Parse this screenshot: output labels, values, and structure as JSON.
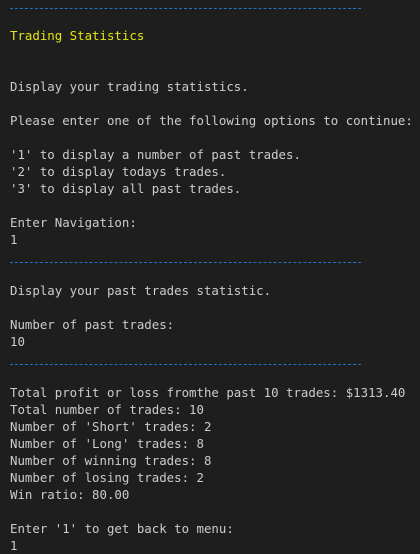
{
  "colors": {
    "background": "#1e1e1e",
    "text": "#cccccc",
    "title": "#e5e510",
    "separator": "#2472c8"
  },
  "header": {
    "title": "Trading Statistics"
  },
  "menu": {
    "description": "Display your trading statistics.",
    "prompt": "Please enter one of the following options to continue:",
    "options": [
      "'1' to display a number of past trades.",
      "'2' to display todays trades.",
      "'3' to display all past trades."
    ],
    "nav_label": "Enter Navigation:",
    "nav_input": "1"
  },
  "past_trades": {
    "description": "Display your past trades statistic.",
    "count_label": "Number of past trades:",
    "count_input": "10"
  },
  "stats": {
    "lines": [
      "Total profit or loss fromthe past 10 trades: $1313.40",
      "Total number of trades: 10",
      "Number of 'Short' trades: 2",
      "Number of 'Long' trades: 8",
      "Number of winning trades: 8",
      "Number of losing trades: 2",
      "Win ratio: 80.00"
    ]
  },
  "footer": {
    "back_prompt": "Enter '1' to get back to menu:",
    "back_input": "1"
  }
}
